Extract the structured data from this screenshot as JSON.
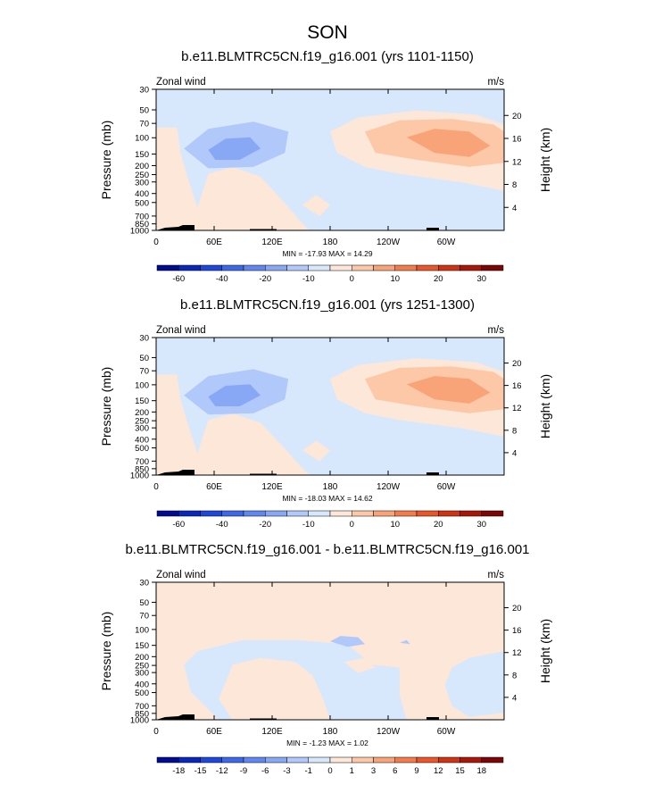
{
  "figure_title": "SON",
  "chart_data": [
    {
      "type": "contour",
      "title": "b.e11.BLMTRC5CN.f19_g16.001 (yrs 1101-1150)",
      "left_label": "Zonal wind",
      "right_label": "m/s",
      "ylabel": "Pressure (mb)",
      "y2label": "Height (km)",
      "x_ticks": [
        "0",
        "60E",
        "120E",
        "180",
        "120W",
        "60W"
      ],
      "x_range_deg": [
        0,
        360
      ],
      "y_ticks_mb": [
        "30",
        "50",
        "70",
        "100",
        "150",
        "200",
        "250",
        "300",
        "400",
        "500",
        "700",
        "850",
        "1000"
      ],
      "y_range_mb": [
        1000,
        30
      ],
      "y2_ticks_km": [
        "4",
        "8",
        "12",
        "16",
        "20"
      ],
      "stats": "MIN = -17.93  MAX =  14.29",
      "min": -17.93,
      "max": 14.29,
      "levels": [
        "-60",
        "-40",
        "-20",
        "-10",
        "0",
        "10",
        "20",
        "30"
      ],
      "colorbar_bins": 16
    },
    {
      "type": "contour",
      "title": "b.e11.BLMTRC5CN.f19_g16.001 (yrs 1251-1300)",
      "left_label": "Zonal wind",
      "right_label": "m/s",
      "ylabel": "Pressure (mb)",
      "y2label": "Height (km)",
      "x_ticks": [
        "0",
        "60E",
        "120E",
        "180",
        "120W",
        "60W"
      ],
      "x_range_deg": [
        0,
        360
      ],
      "y_ticks_mb": [
        "30",
        "50",
        "70",
        "100",
        "150",
        "200",
        "250",
        "300",
        "400",
        "500",
        "700",
        "850",
        "1000"
      ],
      "y_range_mb": [
        1000,
        30
      ],
      "y2_ticks_km": [
        "4",
        "8",
        "12",
        "16",
        "20"
      ],
      "stats": "MIN = -18.03  MAX =  14.62",
      "min": -18.03,
      "max": 14.62,
      "levels": [
        "-60",
        "-40",
        "-20",
        "-10",
        "0",
        "10",
        "20",
        "30"
      ],
      "colorbar_bins": 16
    },
    {
      "type": "contour",
      "title": "b.e11.BLMTRC5CN.f19_g16.001 - b.e11.BLMTRC5CN.f19_g16.001",
      "left_label": "Zonal wind",
      "right_label": "m/s",
      "ylabel": "Pressure (mb)",
      "y2label": "Height (km)",
      "x_ticks": [
        "0",
        "60E",
        "120E",
        "180",
        "120W",
        "60W"
      ],
      "x_range_deg": [
        0,
        360
      ],
      "y_ticks_mb": [
        "30",
        "50",
        "70",
        "100",
        "150",
        "200",
        "250",
        "300",
        "400",
        "500",
        "700",
        "850",
        "1000"
      ],
      "y_range_mb": [
        1000,
        30
      ],
      "y2_ticks_km": [
        "4",
        "8",
        "12",
        "16",
        "20"
      ],
      "stats": "MIN = -1.23  MAX =  1.02",
      "min": -1.23,
      "max": 1.02,
      "levels": [
        "-18",
        "-15",
        "-12",
        "-9",
        "-6",
        "-3",
        "-1",
        "0",
        "1",
        "3",
        "6",
        "9",
        "12",
        "15",
        "18"
      ],
      "colorbar_bins": 16
    }
  ],
  "colors": {
    "colorbar": [
      "#000c8f",
      "#0a28b8",
      "#1f48d8",
      "#3f68e8",
      "#6088f0",
      "#88a8f6",
      "#b0c8fa",
      "#d8e8fc",
      "#fde7d8",
      "#fcc8a8",
      "#f8a478",
      "#f47c4c",
      "#e8562a",
      "#cc3414",
      "#a8180a",
      "#7a0605"
    ],
    "background_field": "#d8e8fc",
    "terrain": "#000000"
  }
}
